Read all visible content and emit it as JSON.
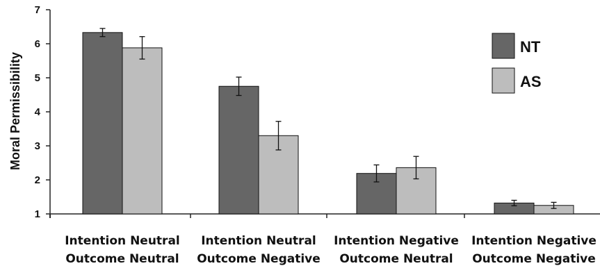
{
  "chart_data": {
    "type": "bar",
    "title": "",
    "xlabel": "",
    "ylabel": "Moral Permissibility",
    "ylim": [
      1,
      7
    ],
    "yticks": [
      1,
      2,
      3,
      4,
      5,
      6,
      7
    ],
    "grid": false,
    "legend_position": "top-right",
    "categories": [
      [
        "Intention Neutral",
        "Outcome Neutral"
      ],
      [
        "Intention Neutral",
        "Outcome Negative"
      ],
      [
        "Intention Negative",
        "Outcome Neutral"
      ],
      [
        "Intention Negative",
        "Outcome Negative"
      ]
    ],
    "series": [
      {
        "name": "NT",
        "color": "#666666",
        "values": [
          6.33,
          4.75,
          2.19,
          1.32
        ],
        "errors": [
          0.12,
          0.27,
          0.25,
          0.08
        ]
      },
      {
        "name": "AS",
        "color": "#bdbdbd",
        "values": [
          5.88,
          3.3,
          2.36,
          1.25
        ],
        "errors": [
          0.33,
          0.42,
          0.33,
          0.09
        ]
      }
    ]
  }
}
